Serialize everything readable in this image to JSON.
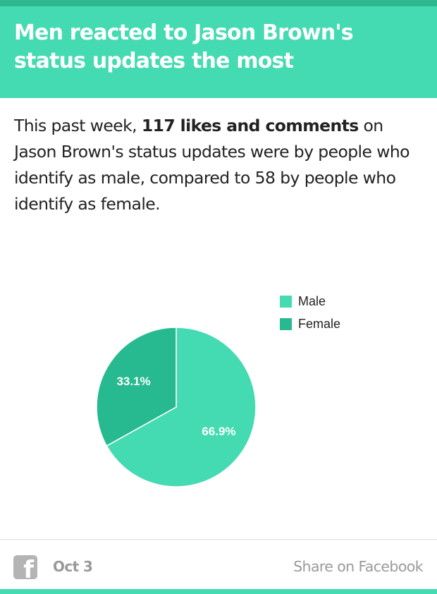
{
  "header": {
    "title": "Men reacted to Jason Brown's status updates the most"
  },
  "summary": {
    "prefix": "This past week, ",
    "highlight": "117 likes and comments",
    "suffix": " on Jason Brown's status updates were by people who identify as male, compared to 58 by people who identify as female."
  },
  "colors": {
    "header": "#44dab2",
    "top_strip": "#2eb88f",
    "male": "#44dab2",
    "female": "#27b98f"
  },
  "chart_data": {
    "type": "pie",
    "title": "",
    "legend": "right",
    "slices": [
      {
        "label": "Male",
        "value": 66.9,
        "display": "66.9%",
        "color": "#44dab2"
      },
      {
        "label": "Female",
        "value": 33.1,
        "display": "33.1%",
        "color": "#27b98f"
      }
    ]
  },
  "footer": {
    "icon": "facebook-icon",
    "icon_glyph": "f",
    "date": "Oct 3",
    "share_label": "Share on Facebook"
  }
}
